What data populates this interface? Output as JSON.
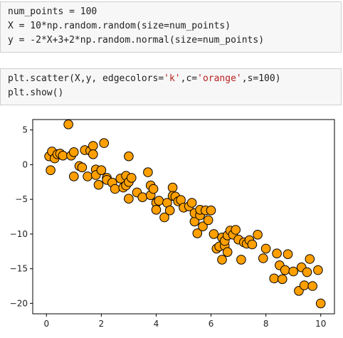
{
  "cells": [
    {
      "lines": [
        {
          "text": "num_points = 100"
        },
        {
          "text": "X = 10*np.random.random(size=num_points)"
        },
        {
          "text": "y = -2*X+3+2*np.random.normal(size=num_points)"
        }
      ]
    },
    {
      "lines": [
        {
          "pre": "plt.scatter(X,y, edgecolors=",
          "s1": "'k'",
          "mid": ",c=",
          "s2": "'orange'",
          "post": ",s=100)"
        },
        {
          "text": "plt.show()"
        }
      ]
    }
  ],
  "chart_data": {
    "type": "scatter",
    "xlim": [
      -0.5,
      10.5
    ],
    "ylim": [
      -21.5,
      6.5
    ],
    "xticks": [
      "0",
      "2",
      "4",
      "6",
      "8",
      "10"
    ],
    "yticks": [
      "5",
      "0",
      "−5",
      "−10",
      "−15",
      "−20"
    ],
    "marker_color": "#ff9f00",
    "edge_color": "#000000",
    "grid": false,
    "x": [
      0.1,
      0.15,
      0.2,
      0.3,
      0.4,
      0.5,
      0.6,
      0.8,
      0.9,
      1.0,
      1.0,
      1.2,
      1.3,
      1.4,
      1.5,
      1.6,
      1.7,
      1.7,
      1.8,
      1.8,
      1.9,
      2.0,
      2.1,
      2.2,
      2.2,
      2.4,
      2.5,
      2.7,
      2.8,
      2.9,
      2.9,
      3.0,
      3.0,
      3.0,
      3.1,
      3.3,
      3.5,
      3.7,
      3.8,
      3.8,
      3.9,
      4.0,
      4.0,
      4.1,
      4.3,
      4.4,
      4.5,
      4.6,
      4.6,
      4.7,
      4.8,
      4.9,
      5.0,
      5.2,
      5.3,
      5.4,
      5.4,
      5.5,
      5.6,
      5.6,
      5.7,
      5.8,
      5.9,
      6.0,
      6.1,
      6.2,
      6.3,
      6.4,
      6.4,
      6.5,
      6.5,
      6.6,
      6.6,
      6.7,
      6.8,
      6.9,
      7.0,
      7.1,
      7.2,
      7.3,
      7.4,
      7.5,
      7.7,
      7.9,
      8.0,
      8.3,
      8.4,
      8.5,
      8.6,
      8.7,
      8.8,
      9.0,
      9.2,
      9.3,
      9.4,
      9.5,
      9.6,
      9.7,
      9.9,
      10.0
    ],
    "y": [
      1.2,
      -0.8,
      1.9,
      0.9,
      1.5,
      1.6,
      1.3,
      5.8,
      1.3,
      -1.7,
      1.8,
      -0.2,
      -0.4,
      2.1,
      -1.7,
      2.0,
      2.7,
      1.5,
      -0.7,
      -1.5,
      -2.9,
      -0.8,
      3.1,
      -1.9,
      -2.2,
      -2.6,
      -3.5,
      -2.0,
      -3.3,
      -1.6,
      -3.0,
      1.2,
      -4.9,
      -2.5,
      -1.9,
      -4.0,
      -4.7,
      -1.1,
      -3.0,
      -4.4,
      -3.5,
      -5.5,
      -6.5,
      -5.2,
      -7.6,
      -5.5,
      -6.6,
      -3.3,
      -4.5,
      -4.6,
      -5.3,
      -5.1,
      -6.2,
      -6.0,
      -5.5,
      -8.2,
      -7.0,
      -9.9,
      -7.3,
      -6.5,
      -8.9,
      -6.6,
      -8.0,
      -6.6,
      -10.0,
      -12.1,
      -11.8,
      -10.5,
      -13.7,
      -11.7,
      -11.0,
      -12.6,
      -10.2,
      -9.5,
      -10.1,
      -9.4,
      -10.8,
      -13.7,
      -11.2,
      -11.4,
      -10.9,
      -11.5,
      -10.1,
      -13.5,
      -12.1,
      -16.4,
      -12.8,
      -14.5,
      -16.5,
      -15.2,
      -12.9,
      -15.4,
      -18.2,
      -14.8,
      -17.4,
      -15.5,
      -13.6,
      -17.5,
      -15.2,
      -20.0
    ]
  }
}
